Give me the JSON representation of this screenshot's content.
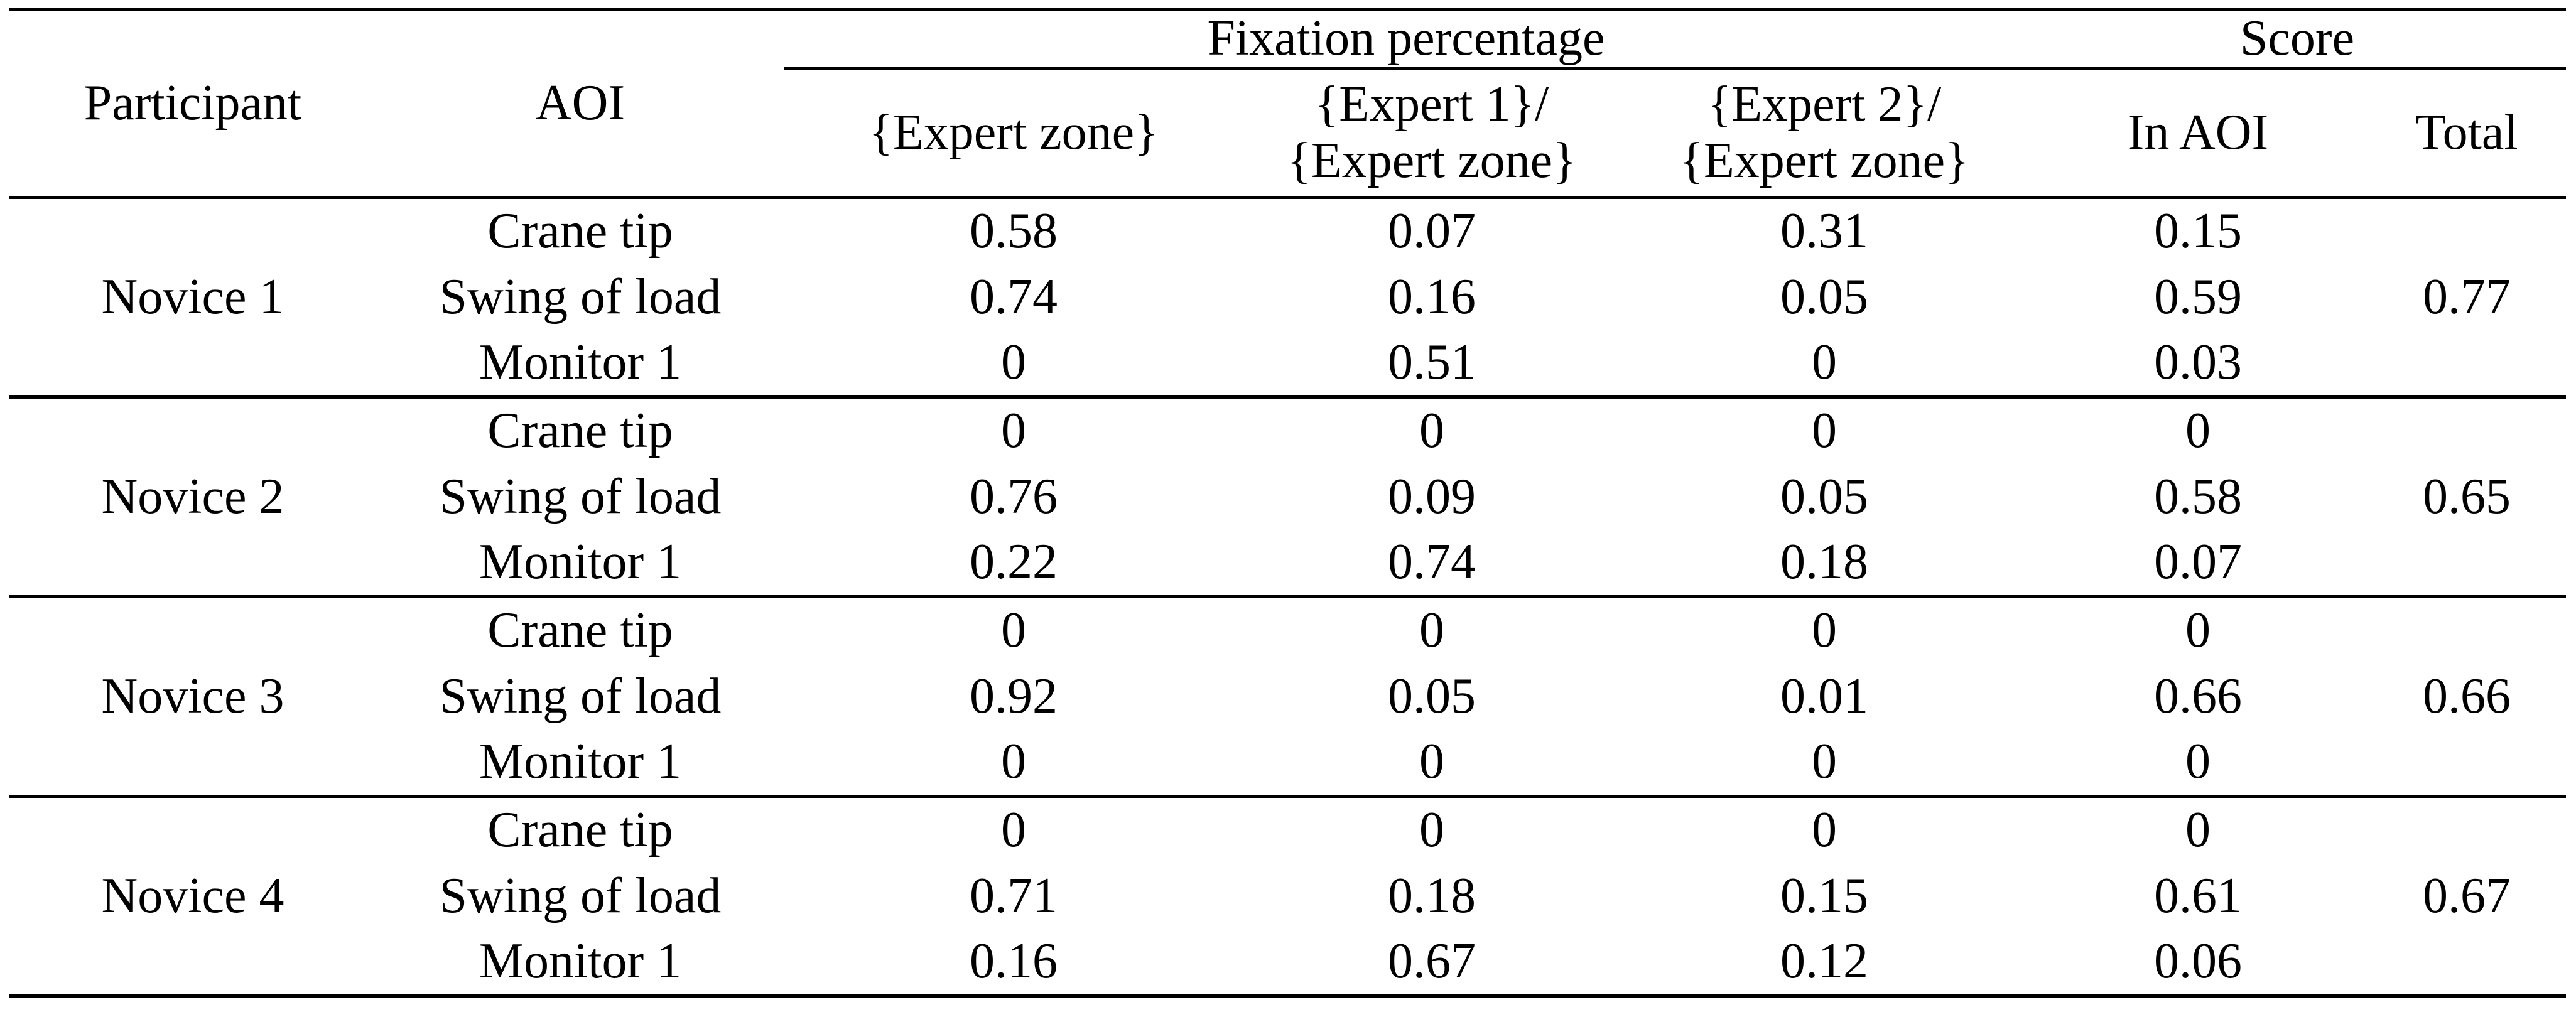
{
  "colors": {
    "background": "#ffffff",
    "text": "#000000",
    "rule": "#000000"
  },
  "header": {
    "participant": "Participant",
    "aoi": "AOI",
    "fixation_percentage": "Fixation percentage",
    "score": "Score",
    "expert_zone": "{Expert zone}",
    "expert1_over_line1": "{Expert 1}/",
    "expert1_over_line2": "{Expert zone}",
    "expert2_over_line1": "{Expert 2}/",
    "expert2_over_line2": "{Expert zone}",
    "in_aoi": "In AOI",
    "total": "Total"
  },
  "chart_data": {
    "type": "table",
    "column_group_headers": [
      {
        "label": "Fixation percentage",
        "span": 3
      },
      {
        "label": "Score",
        "span": 2
      }
    ],
    "columns": [
      "Participant",
      "AOI",
      "{Expert zone}",
      "{Expert 1}/{Expert zone}",
      "{Expert 2}/{Expert zone}",
      "In AOI",
      "Total"
    ],
    "groups": [
      {
        "participant": "Novice 1",
        "total": "0.77",
        "rows": [
          {
            "aoi": "Crane tip",
            "values": [
              "0.58",
              "0.07",
              "0.31",
              "0.15"
            ]
          },
          {
            "aoi": "Swing of load",
            "values": [
              "0.74",
              "0.16",
              "0.05",
              "0.59"
            ]
          },
          {
            "aoi": "Monitor 1",
            "values": [
              "0",
              "0.51",
              "0",
              "0.03"
            ]
          }
        ]
      },
      {
        "participant": "Novice 2",
        "total": "0.65",
        "rows": [
          {
            "aoi": "Crane tip",
            "values": [
              "0",
              "0",
              "0",
              "0"
            ]
          },
          {
            "aoi": "Swing of load",
            "values": [
              "0.76",
              "0.09",
              "0.05",
              "0.58"
            ]
          },
          {
            "aoi": "Monitor 1",
            "values": [
              "0.22",
              "0.74",
              "0.18",
              "0.07"
            ]
          }
        ]
      },
      {
        "participant": "Novice 3",
        "total": "0.66",
        "rows": [
          {
            "aoi": "Crane tip",
            "values": [
              "0",
              "0",
              "0",
              "0"
            ]
          },
          {
            "aoi": "Swing of load",
            "values": [
              "0.92",
              "0.05",
              "0.01",
              "0.66"
            ]
          },
          {
            "aoi": "Monitor 1",
            "values": [
              "0",
              "0",
              "0",
              "0"
            ]
          }
        ]
      },
      {
        "participant": "Novice 4",
        "total": "0.67",
        "rows": [
          {
            "aoi": "Crane tip",
            "values": [
              "0",
              "0",
              "0",
              "0"
            ]
          },
          {
            "aoi": "Swing of load",
            "values": [
              "0.71",
              "0.18",
              "0.15",
              "0.61"
            ]
          },
          {
            "aoi": "Monitor 1",
            "values": [
              "0.16",
              "0.67",
              "0.12",
              "0.06"
            ]
          }
        ]
      }
    ]
  }
}
